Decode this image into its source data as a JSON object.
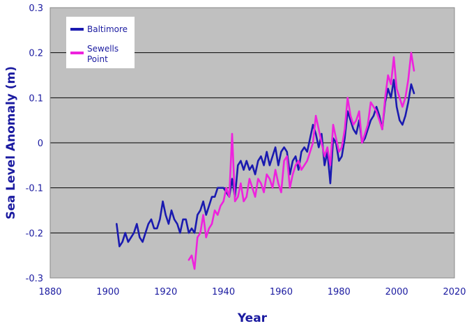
{
  "chart_data": {
    "type": "line",
    "title": "",
    "xlabel": "Year",
    "ylabel": "Sea Level Anomaly (m)",
    "xlim": [
      1880,
      2020
    ],
    "ylim": [
      -0.3,
      0.3
    ],
    "x_ticks": [
      1880,
      1900,
      1920,
      1940,
      1960,
      1980,
      2000,
      2020
    ],
    "y_ticks": [
      0.3,
      0.2,
      0.1,
      0,
      -0.1,
      -0.2,
      -0.3
    ],
    "y_tick_labels": [
      "0.3",
      "0.2",
      "0.1",
      "0",
      "-0.1",
      "-0.2",
      "-0.3"
    ],
    "grid": true,
    "legend_position": "top-left",
    "series": [
      {
        "name": "Baltimore",
        "color": "#1a1ab0",
        "points": [
          [
            1903,
            -0.18
          ],
          [
            1904,
            -0.23
          ],
          [
            1905,
            -0.22
          ],
          [
            1906,
            -0.2
          ],
          [
            1907,
            -0.22
          ],
          [
            1908,
            -0.21
          ],
          [
            1909,
            -0.2
          ],
          [
            1910,
            -0.18
          ],
          [
            1911,
            -0.21
          ],
          [
            1912,
            -0.22
          ],
          [
            1913,
            -0.2
          ],
          [
            1914,
            -0.18
          ],
          [
            1915,
            -0.17
          ],
          [
            1916,
            -0.19
          ],
          [
            1917,
            -0.19
          ],
          [
            1918,
            -0.17
          ],
          [
            1919,
            -0.13
          ],
          [
            1920,
            -0.16
          ],
          [
            1921,
            -0.18
          ],
          [
            1922,
            -0.15
          ],
          [
            1923,
            -0.17
          ],
          [
            1924,
            -0.18
          ],
          [
            1925,
            -0.2
          ],
          [
            1926,
            -0.17
          ],
          [
            1927,
            -0.17
          ],
          [
            1928,
            -0.2
          ],
          [
            1929,
            -0.19
          ],
          [
            1930,
            -0.2
          ],
          [
            1931,
            -0.16
          ],
          [
            1932,
            -0.15
          ],
          [
            1933,
            -0.13
          ],
          [
            1934,
            -0.16
          ],
          [
            1935,
            -0.14
          ],
          [
            1936,
            -0.12
          ],
          [
            1937,
            -0.12
          ],
          [
            1938,
            -0.1
          ],
          [
            1939,
            -0.1
          ],
          [
            1940,
            -0.1
          ],
          [
            1941,
            -0.11
          ],
          [
            1942,
            -0.12
          ],
          [
            1943,
            -0.08
          ],
          [
            1944,
            -0.12
          ],
          [
            1945,
            -0.05
          ],
          [
            1946,
            -0.04
          ],
          [
            1947,
            -0.06
          ],
          [
            1948,
            -0.04
          ],
          [
            1949,
            -0.06
          ],
          [
            1950,
            -0.05
          ],
          [
            1951,
            -0.07
          ],
          [
            1952,
            -0.04
          ],
          [
            1953,
            -0.03
          ],
          [
            1954,
            -0.05
          ],
          [
            1955,
            -0.02
          ],
          [
            1956,
            -0.05
          ],
          [
            1957,
            -0.03
          ],
          [
            1958,
            -0.01
          ],
          [
            1959,
            -0.05
          ],
          [
            1960,
            -0.02
          ],
          [
            1961,
            -0.01
          ],
          [
            1962,
            -0.02
          ],
          [
            1963,
            -0.07
          ],
          [
            1964,
            -0.04
          ],
          [
            1965,
            -0.03
          ],
          [
            1966,
            -0.06
          ],
          [
            1967,
            -0.02
          ],
          [
            1968,
            -0.01
          ],
          [
            1969,
            -0.02
          ],
          [
            1970,
            0.01
          ],
          [
            1971,
            0.04
          ],
          [
            1972,
            0.02
          ],
          [
            1973,
            -0.01
          ],
          [
            1974,
            0.02
          ],
          [
            1975,
            -0.05
          ],
          [
            1976,
            -0.02
          ],
          [
            1977,
            -0.09
          ],
          [
            1978,
            0.01
          ],
          [
            1979,
            0.0
          ],
          [
            1980,
            -0.04
          ],
          [
            1981,
            -0.03
          ],
          [
            1982,
            0.01
          ],
          [
            1983,
            0.07
          ],
          [
            1984,
            0.05
          ],
          [
            1985,
            0.03
          ],
          [
            1986,
            0.02
          ],
          [
            1987,
            0.05
          ],
          [
            1988,
            0.0
          ],
          [
            1989,
            0.01
          ],
          [
            1990,
            0.03
          ],
          [
            1991,
            0.05
          ],
          [
            1992,
            0.06
          ],
          [
            1993,
            0.08
          ],
          [
            1994,
            0.06
          ],
          [
            1995,
            0.03
          ],
          [
            1996,
            0.09
          ],
          [
            1997,
            0.12
          ],
          [
            1998,
            0.1
          ],
          [
            1999,
            0.14
          ],
          [
            2000,
            0.08
          ],
          [
            2001,
            0.05
          ],
          [
            2002,
            0.04
          ],
          [
            2003,
            0.06
          ],
          [
            2004,
            0.09
          ],
          [
            2005,
            0.13
          ],
          [
            2006,
            0.11
          ]
        ]
      },
      {
        "name": "Sewells Point",
        "color": "#ee22dd",
        "points": [
          [
            1928,
            -0.26
          ],
          [
            1929,
            -0.25
          ],
          [
            1930,
            -0.28
          ],
          [
            1931,
            -0.21
          ],
          [
            1932,
            -0.2
          ],
          [
            1933,
            -0.16
          ],
          [
            1934,
            -0.21
          ],
          [
            1935,
            -0.19
          ],
          [
            1936,
            -0.18
          ],
          [
            1937,
            -0.15
          ],
          [
            1938,
            -0.16
          ],
          [
            1939,
            -0.14
          ],
          [
            1940,
            -0.13
          ],
          [
            1941,
            -0.1
          ],
          [
            1942,
            -0.12
          ],
          [
            1943,
            0.02
          ],
          [
            1944,
            -0.13
          ],
          [
            1945,
            -0.12
          ],
          [
            1946,
            -0.09
          ],
          [
            1947,
            -0.13
          ],
          [
            1948,
            -0.12
          ],
          [
            1949,
            -0.08
          ],
          [
            1950,
            -0.1
          ],
          [
            1951,
            -0.12
          ],
          [
            1952,
            -0.08
          ],
          [
            1953,
            -0.09
          ],
          [
            1954,
            -0.11
          ],
          [
            1955,
            -0.07
          ],
          [
            1956,
            -0.08
          ],
          [
            1957,
            -0.1
          ],
          [
            1958,
            -0.06
          ],
          [
            1959,
            -0.09
          ],
          [
            1960,
            -0.11
          ],
          [
            1961,
            -0.04
          ],
          [
            1962,
            -0.03
          ],
          [
            1963,
            -0.1
          ],
          [
            1964,
            -0.07
          ],
          [
            1965,
            -0.05
          ],
          [
            1966,
            -0.04
          ],
          [
            1967,
            -0.06
          ],
          [
            1968,
            -0.05
          ],
          [
            1969,
            -0.04
          ],
          [
            1970,
            -0.02
          ],
          [
            1971,
            0.0
          ],
          [
            1972,
            0.06
          ],
          [
            1973,
            0.03
          ],
          [
            1974,
            0.0
          ],
          [
            1975,
            -0.03
          ],
          [
            1976,
            -0.01
          ],
          [
            1977,
            -0.05
          ],
          [
            1978,
            0.04
          ],
          [
            1979,
            0.01
          ],
          [
            1980,
            -0.02
          ],
          [
            1981,
            -0.01
          ],
          [
            1982,
            0.03
          ],
          [
            1983,
            0.1
          ],
          [
            1984,
            0.06
          ],
          [
            1985,
            0.04
          ],
          [
            1986,
            0.05
          ],
          [
            1987,
            0.07
          ],
          [
            1988,
            0.0
          ],
          [
            1989,
            0.02
          ],
          [
            1990,
            0.04
          ],
          [
            1991,
            0.09
          ],
          [
            1992,
            0.08
          ],
          [
            1993,
            0.07
          ],
          [
            1994,
            0.05
          ],
          [
            1995,
            0.03
          ],
          [
            1996,
            0.1
          ],
          [
            1997,
            0.15
          ],
          [
            1998,
            0.13
          ],
          [
            1999,
            0.19
          ],
          [
            2000,
            0.12
          ],
          [
            2001,
            0.1
          ],
          [
            2002,
            0.08
          ],
          [
            2003,
            0.1
          ],
          [
            2004,
            0.14
          ],
          [
            2005,
            0.2
          ],
          [
            2006,
            0.16
          ]
        ]
      }
    ]
  }
}
